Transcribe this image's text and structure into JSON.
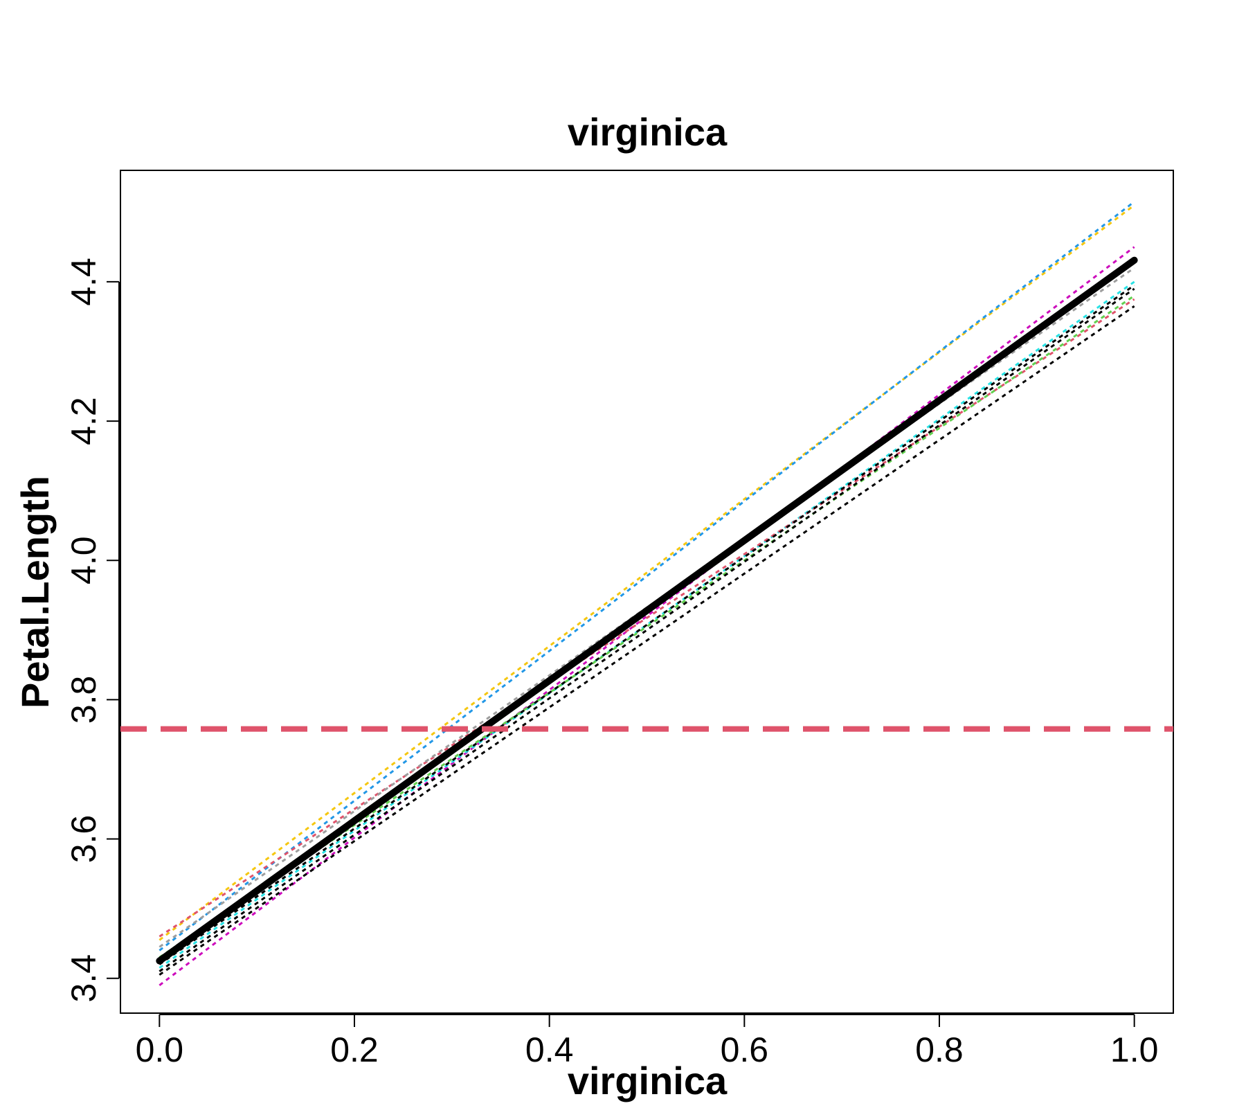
{
  "chart_data": {
    "type": "line",
    "title": "virginica",
    "xlabel": "virginica",
    "ylabel": "Petal.Length",
    "xlim": [
      -0.04,
      1.04
    ],
    "ylim": [
      3.35,
      4.56
    ],
    "xticks": [
      "0.0",
      "0.2",
      "0.4",
      "0.6",
      "0.8",
      "1.0"
    ],
    "yticks": [
      "3.4",
      "3.6",
      "3.8",
      "4.0",
      "4.2",
      "4.4"
    ],
    "reference_line": {
      "y": 3.758,
      "color": "#DF536B"
    },
    "main_line": {
      "x": [
        0,
        1
      ],
      "y": [
        3.425,
        4.431
      ],
      "color": "#000000"
    },
    "sample_lines": [
      {
        "x": [
          0,
          1
        ],
        "y": [
          3.455,
          4.51
        ],
        "color": "#F5C710"
      },
      {
        "x": [
          0,
          1
        ],
        "y": [
          3.44,
          4.515
        ],
        "color": "#2297E6"
      },
      {
        "x": [
          0,
          1
        ],
        "y": [
          3.39,
          4.45
        ],
        "color": "#CD0BBC"
      },
      {
        "x": [
          0,
          1
        ],
        "y": [
          3.415,
          4.4
        ],
        "color": "#28E2E5"
      },
      {
        "x": [
          0,
          1
        ],
        "y": [
          3.46,
          4.375
        ],
        "color": "#DF536B"
      },
      {
        "x": [
          0,
          1
        ],
        "y": [
          3.43,
          4.38
        ],
        "color": "#61D04F"
      },
      {
        "x": [
          0,
          1
        ],
        "y": [
          3.405,
          4.365
        ],
        "color": "#000000"
      },
      {
        "x": [
          0,
          1
        ],
        "y": [
          3.41,
          4.39
        ],
        "color": "#000000"
      },
      {
        "x": [
          0,
          1
        ],
        "y": [
          3.42,
          4.395
        ],
        "color": "#000000"
      },
      {
        "x": [
          0,
          1
        ],
        "y": [
          3.445,
          4.42
        ],
        "color": "#9E9E9E"
      }
    ],
    "grid": false,
    "legend": "none"
  }
}
